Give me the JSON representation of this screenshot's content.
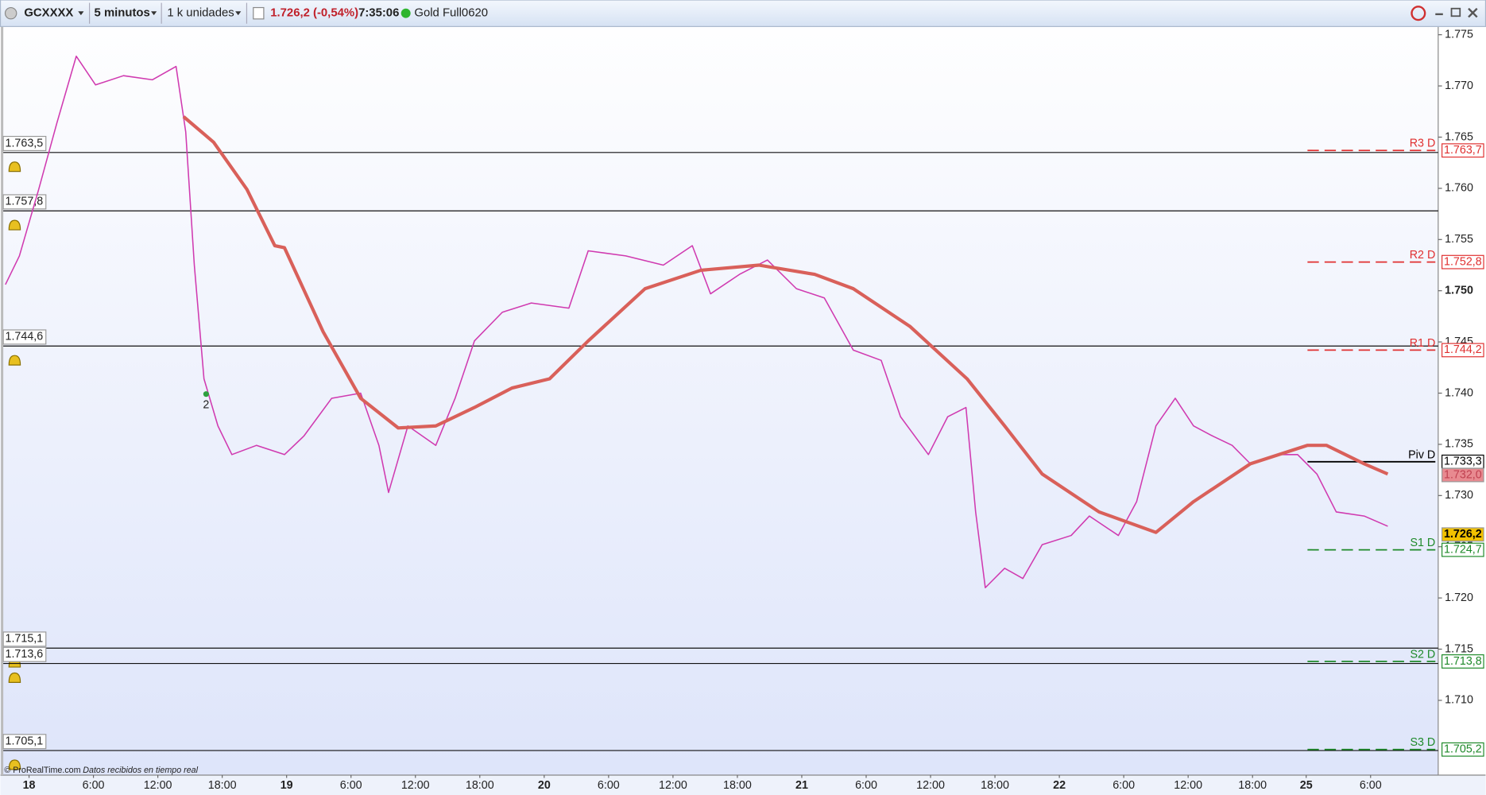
{
  "toolbar": {
    "symbol": "GCXXXX",
    "interval": "5 minutos",
    "units": "1 k unidades",
    "price": "1.726,2 (-0,54%)",
    "time": "7:35:06",
    "instrument": "Gold Full0620"
  },
  "footer": {
    "brand": "© ProRealTime.com",
    "status": "Datos recibidos en tiempo real"
  },
  "chart_data": {
    "type": "line",
    "xlim": [
      -2.4,
      131.3
    ],
    "ylim": [
      1702.7,
      1775.8
    ],
    "xticks": [
      {
        "value": 0,
        "label": "18"
      },
      {
        "value": 6,
        "label": "6:00"
      },
      {
        "value": 12,
        "label": "12:00"
      },
      {
        "value": 18,
        "label": "18:00"
      },
      {
        "value": 24,
        "label": "19"
      },
      {
        "value": 30,
        "label": "6:00"
      },
      {
        "value": 36,
        "label": "12:00"
      },
      {
        "value": 42,
        "label": "18:00"
      },
      {
        "value": 48,
        "label": "20"
      },
      {
        "value": 54,
        "label": "6:00"
      },
      {
        "value": 60,
        "label": "12:00"
      },
      {
        "value": 66,
        "label": "18:00"
      },
      {
        "value": 72,
        "label": "21"
      },
      {
        "value": 78,
        "label": "6:00"
      },
      {
        "value": 84,
        "label": "12:00"
      },
      {
        "value": 90,
        "label": "18:00"
      },
      {
        "value": 96,
        "label": "22"
      },
      {
        "value": 102,
        "label": "6:00"
      },
      {
        "value": 108,
        "label": "12:00"
      },
      {
        "value": 114,
        "label": "18:00"
      },
      {
        "value": 119,
        "label": "25"
      },
      {
        "value": 125,
        "label": "6:00"
      }
    ],
    "yticks": [
      {
        "value": 1775,
        "label": "1.775"
      },
      {
        "value": 1770,
        "label": "1.770"
      },
      {
        "value": 1765,
        "label": "1.765"
      },
      {
        "value": 1760,
        "label": "1.760"
      },
      {
        "value": 1755,
        "label": "1.755"
      },
      {
        "value": 1750,
        "label": "1.750"
      },
      {
        "value": 1745,
        "label": "1.745"
      },
      {
        "value": 1740,
        "label": "1.740"
      },
      {
        "value": 1735,
        "label": "1.735"
      },
      {
        "value": 1730,
        "label": "1.730"
      },
      {
        "value": 1725,
        "label": "1.725"
      },
      {
        "value": 1720,
        "label": "1.720"
      },
      {
        "value": 1715,
        "label": "1.715"
      },
      {
        "value": 1710,
        "label": "1.710"
      }
    ],
    "series": [
      {
        "color": "#d03ab0",
        "x": [
          -2.2,
          -0.9,
          0.9,
          2.6,
          4.4,
          6.2,
          8.8,
          11.5,
          13.7,
          14.6,
          15.4,
          16.3,
          17.6,
          18.9,
          21.2,
          23.8,
          25.6,
          28.2,
          30.9,
          32.6,
          33.5,
          35.3,
          37.9,
          39.7,
          41.5,
          44.1,
          46.8,
          50.3,
          52.1,
          55.6,
          59.1,
          61.8,
          63.5,
          66.2,
          68.8,
          71.5,
          74.1,
          76.8,
          79.4,
          81.2,
          83.8,
          85.6,
          87.3,
          88.2,
          89.1,
          90.9,
          92.6,
          94.4,
          97.1,
          98.8,
          101.5,
          103.2,
          105,
          106.8,
          108.5,
          110.3,
          112.1,
          113.8,
          116.5,
          118.2,
          120,
          121.8,
          124.4,
          126.6
        ],
        "values": [
          1750.6,
          1753.4,
          1759.9,
          1766.4,
          1772.9,
          1770.1,
          1771,
          1770.6,
          1771.9,
          1765.5,
          1752.5,
          1741.4,
          1736.8,
          1734,
          1734.9,
          1734,
          1735.8,
          1739.5,
          1740,
          1734.9,
          1730.3,
          1736.8,
          1734.9,
          1739.5,
          1745.1,
          1747.9,
          1748.8,
          1748.3,
          1753.9,
          1753.4,
          1752.5,
          1754.4,
          1749.7,
          1751.6,
          1753,
          1750.2,
          1749.3,
          1744.2,
          1743.2,
          1737.7,
          1734,
          1737.7,
          1738.6,
          1728.4,
          1721,
          1722.9,
          1721.9,
          1725.2,
          1726.1,
          1728,
          1726.1,
          1729.4,
          1736.8,
          1739.5,
          1736.8,
          1735.8,
          1734.9,
          1733.1,
          1734,
          1734,
          1732.1,
          1728.4,
          1728,
          1727
        ]
      },
      {
        "color": "#d9605a",
        "x": [
          14.4,
          17.2,
          20.3,
          22.9,
          23.8,
          27.4,
          30.9,
          34.4,
          37.9,
          41.5,
          45,
          48.5,
          52.1,
          57.4,
          62.6,
          68,
          73.2,
          76.8,
          82.1,
          87.4,
          90.9,
          94.4,
          99.7,
          105,
          108.5,
          113.8,
          119.1,
          120.9,
          124.4,
          126.6
        ],
        "values": [
          1767,
          1764.5,
          1759.9,
          1754.4,
          1754.2,
          1746,
          1739.5,
          1736.6,
          1736.8,
          1738.6,
          1740.5,
          1741.4,
          1745.1,
          1750.2,
          1752,
          1752.5,
          1751.6,
          1750.2,
          1746.5,
          1741.4,
          1736.8,
          1732.1,
          1728.4,
          1726.4,
          1729.4,
          1733.1,
          1734.9,
          1734.9,
          1733.1,
          1732.1
        ]
      }
    ],
    "levels": [
      {
        "value": 1763.5,
        "label": "1.763,5"
      },
      {
        "value": 1757.8,
        "label": "1.757,8"
      },
      {
        "value": 1744.6,
        "label": "1.744,6"
      },
      {
        "value": 1715.1,
        "label": "1.715,1"
      },
      {
        "value": 1713.6,
        "label": "1.713,6"
      },
      {
        "value": 1705.1,
        "label": "1.705,1"
      }
    ],
    "pivots": [
      {
        "name": "R3 D",
        "value": 1763.7,
        "label": "1.763,7",
        "color": "#e03030"
      },
      {
        "name": "R2 D",
        "value": 1752.8,
        "label": "1.752,8",
        "color": "#e03030"
      },
      {
        "name": "R1 D",
        "value": 1744.2,
        "label": "1.744,2",
        "color": "#e03030"
      },
      {
        "name": "Piv D",
        "value": 1733.3,
        "label": "1.733,3",
        "color": "#000000"
      },
      {
        "name": "S1 D",
        "value": 1724.7,
        "label": "1.724,7",
        "color": "#1f8a2a"
      },
      {
        "name": "S2 D",
        "value": 1713.8,
        "label": "1.713,8",
        "color": "#1f8a2a"
      },
      {
        "name": "S3 D",
        "value": 1705.2,
        "label": "1.705,2",
        "color": "#1f8a2a"
      }
    ],
    "markers": [
      {
        "value": 1726.2,
        "label": "1.726,2",
        "color": "#f2c200"
      },
      {
        "value": 1732.0,
        "label": "1.732,0",
        "color": "#e88a90"
      }
    ],
    "annotations": [
      {
        "text": "2",
        "x": 16.5,
        "y": 1738.8
      }
    ]
  }
}
